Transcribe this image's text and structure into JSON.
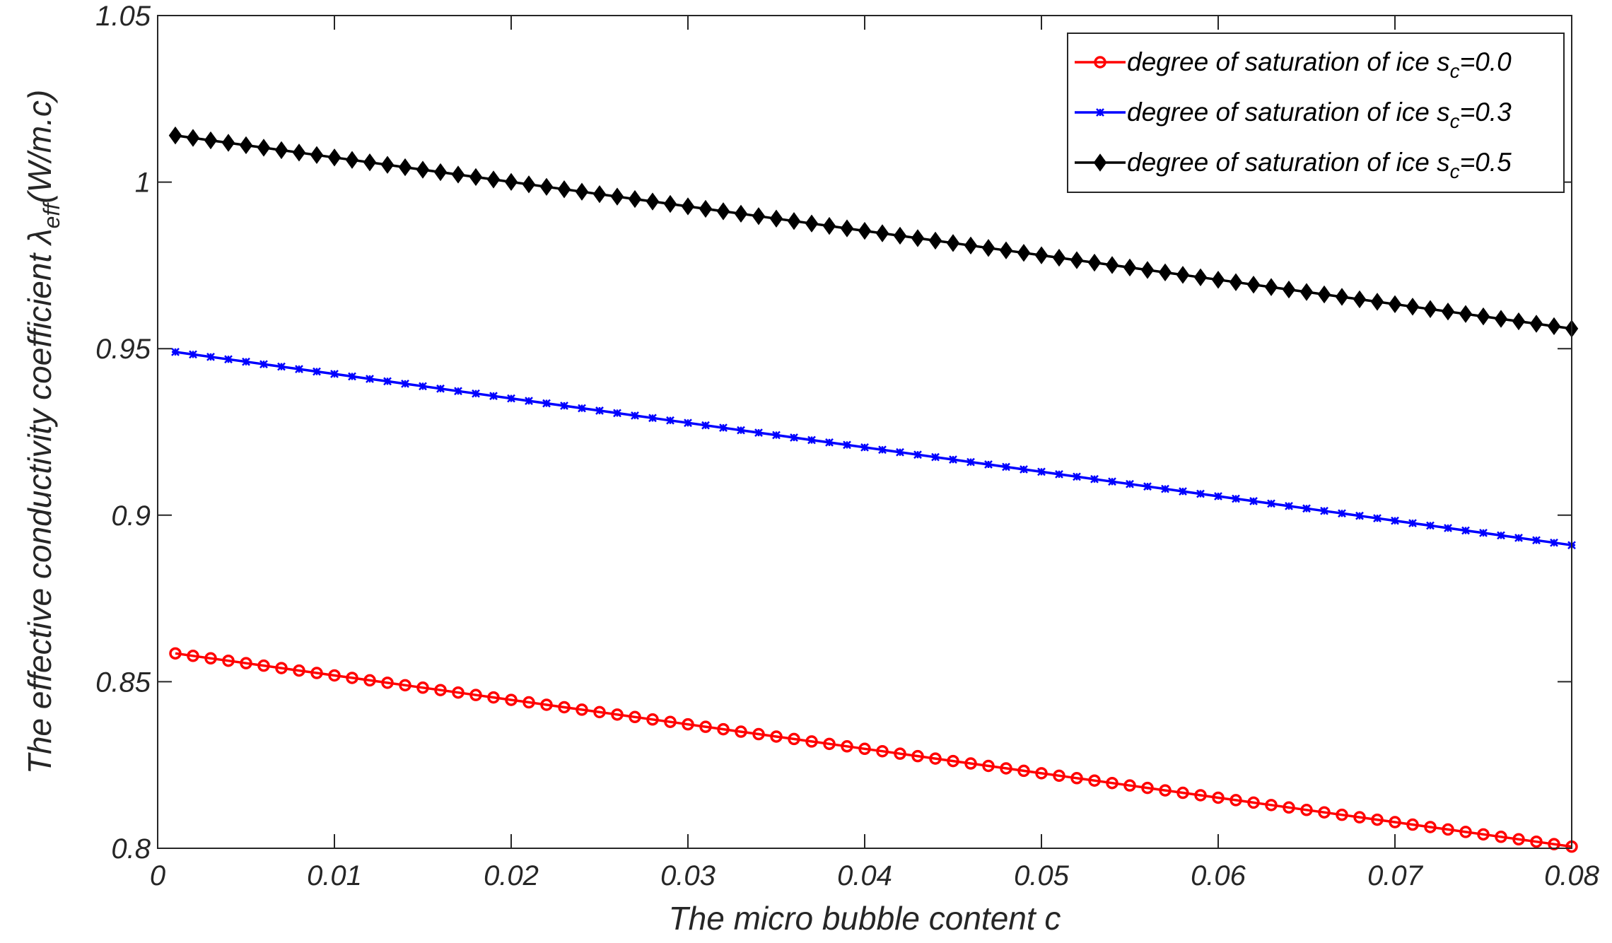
{
  "chart_data": {
    "type": "line",
    "xlabel": "The micro bubble content c",
    "ylabel": {
      "main": "The effective conductivity coefficient ",
      "symbol": "λ",
      "subscript": "eff",
      "unit": "(W/m.c)"
    },
    "xlim": [
      0,
      0.08
    ],
    "ylim": [
      0.8,
      1.05
    ],
    "x_ticks": [
      0,
      0.01,
      0.02,
      0.03,
      0.04,
      0.05,
      0.06,
      0.07,
      0.08
    ],
    "x_tick_labels": [
      "0",
      "0.01",
      "0.02",
      "0.03",
      "0.04",
      "0.05",
      "0.06",
      "0.07",
      "0.08"
    ],
    "y_ticks": [
      0.8,
      0.85,
      0.9,
      0.95,
      1.0,
      1.05
    ],
    "y_tick_labels": [
      "0.8",
      "0.85",
      "0.9",
      "0.95",
      "1",
      "1.05"
    ],
    "grid": false,
    "legend_position": "top-right",
    "x": {
      "start": 0.001,
      "step": 0.001,
      "count": 80
    },
    "series": [
      {
        "label_prefix": "degree of saturation of ice s",
        "label_sub": "c",
        "label_suffix": "=0.0",
        "color": "#ff0000",
        "marker": "circle",
        "y_start": 0.8585,
        "y_end": 0.8005
      },
      {
        "label_prefix": "degree of saturation of ice s",
        "label_sub": "c",
        "label_suffix": "=0.3",
        "color": "#0000ff",
        "marker": "star",
        "y_start": 0.949,
        "y_end": 0.891
      },
      {
        "label_prefix": "degree of saturation of ice s",
        "label_sub": "c",
        "label_suffix": "=0.5",
        "color": "#000000",
        "marker": "diamond",
        "y_start": 1.014,
        "y_end": 0.956
      }
    ]
  }
}
